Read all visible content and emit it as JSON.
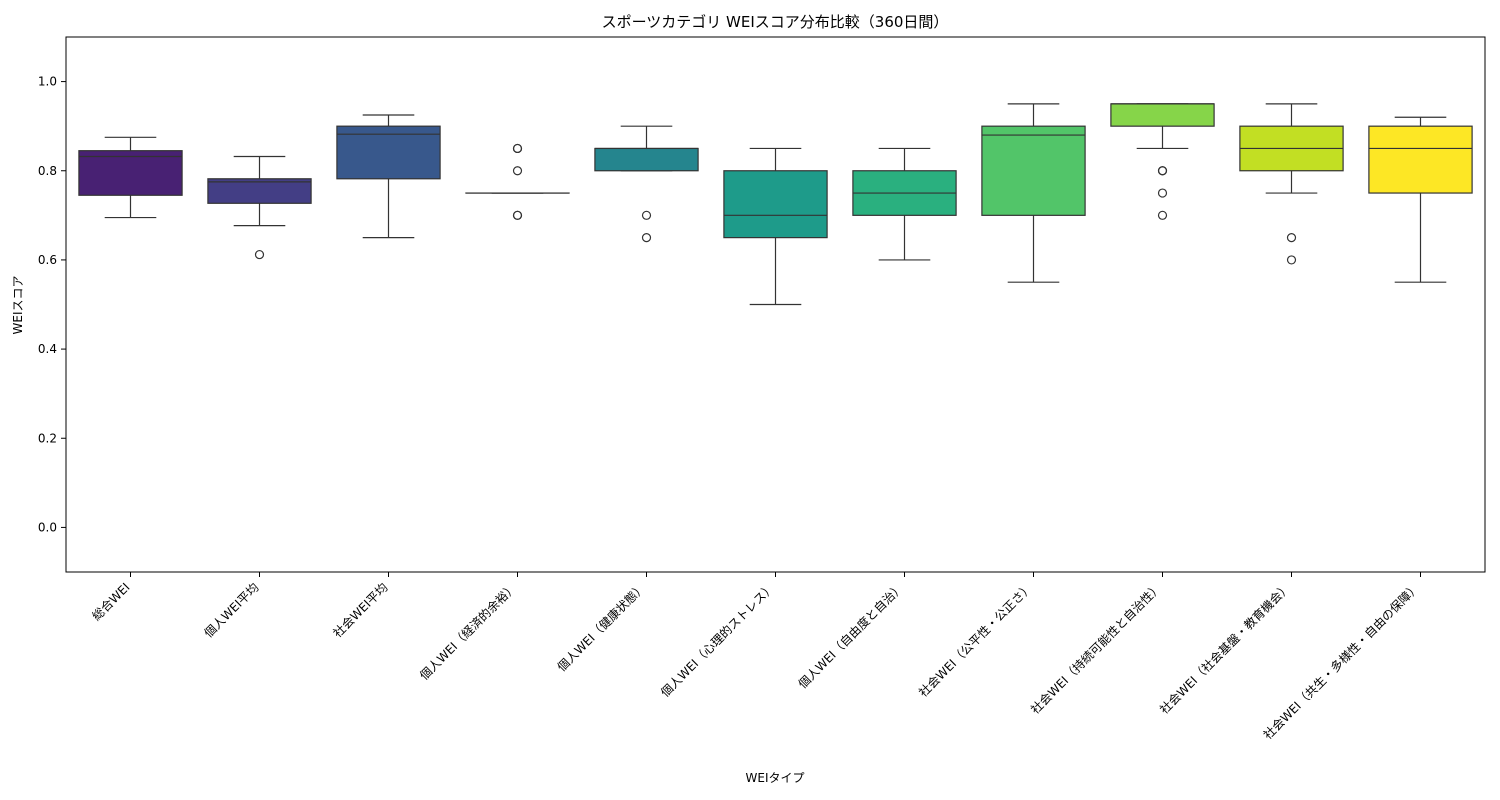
{
  "chart_data": {
    "type": "box",
    "title": "スポーツカテゴリ WEIスコア分布比較（360日間）",
    "xlabel": "WEIタイプ",
    "ylabel": "WEIスコア",
    "ylim": [
      -0.1,
      1.1
    ],
    "yticks": [
      "0.0",
      "0.2",
      "0.4",
      "0.6",
      "0.8",
      "1.0"
    ],
    "grid": false,
    "categories": [
      "総合WEI",
      "個人WEI平均",
      "社会WEI平均",
      "個人WEI（経済的余裕）",
      "個人WEI（健康状態）",
      "個人WEI（心理的ストレス）",
      "個人WEI（自由度と自治）",
      "社会WEI（公平性・公正さ）",
      "社会WEI（持続可能性と自治性）",
      "社会WEI（社会基盤・教育機会）",
      "社会WEI（共生・多様性・自由の保障）"
    ],
    "colors": [
      "#482173",
      "#433e85",
      "#38588c",
      "#2d708e",
      "#25858e",
      "#1e9b8a",
      "#2ab07f",
      "#52c569",
      "#86d549",
      "#c2df23",
      "#fde725"
    ],
    "boxes": [
      {
        "whisker_low": 0.695,
        "q1": 0.745,
        "median": 0.832,
        "q3": 0.845,
        "whisker_high": 0.875,
        "outliers": []
      },
      {
        "whisker_low": 0.677,
        "q1": 0.727,
        "median": 0.775,
        "q3": 0.782,
        "whisker_high": 0.832,
        "outliers": [
          0.612
        ]
      },
      {
        "whisker_low": 0.65,
        "q1": 0.782,
        "median": 0.882,
        "q3": 0.9,
        "whisker_high": 0.925,
        "outliers": []
      },
      {
        "whisker_low": 0.75,
        "q1": 0.75,
        "median": 0.75,
        "q3": 0.75,
        "whisker_high": 0.75,
        "outliers": [
          0.85,
          0.85,
          0.8,
          0.7,
          0.7
        ]
      },
      {
        "whisker_low": 0.8,
        "q1": 0.8,
        "median": 0.85,
        "q3": 0.85,
        "whisker_high": 0.9,
        "outliers": [
          0.7,
          0.65
        ]
      },
      {
        "whisker_low": 0.5,
        "q1": 0.65,
        "median": 0.7,
        "q3": 0.8,
        "whisker_high": 0.85,
        "outliers": []
      },
      {
        "whisker_low": 0.6,
        "q1": 0.7,
        "median": 0.75,
        "q3": 0.8,
        "whisker_high": 0.85,
        "outliers": []
      },
      {
        "whisker_low": 0.55,
        "q1": 0.7,
        "median": 0.88,
        "q3": 0.9,
        "whisker_high": 0.95,
        "outliers": []
      },
      {
        "whisker_low": 0.85,
        "q1": 0.9,
        "median": 0.95,
        "q3": 0.95,
        "whisker_high": 0.95,
        "outliers": [
          0.8,
          0.8,
          0.75,
          0.7
        ]
      },
      {
        "whisker_low": 0.75,
        "q1": 0.8,
        "median": 0.85,
        "q3": 0.9,
        "whisker_high": 0.95,
        "outliers": [
          0.65,
          0.6
        ]
      },
      {
        "whisker_low": 0.55,
        "q1": 0.75,
        "median": 0.85,
        "q3": 0.9,
        "whisker_high": 0.92,
        "outliers": []
      }
    ]
  }
}
